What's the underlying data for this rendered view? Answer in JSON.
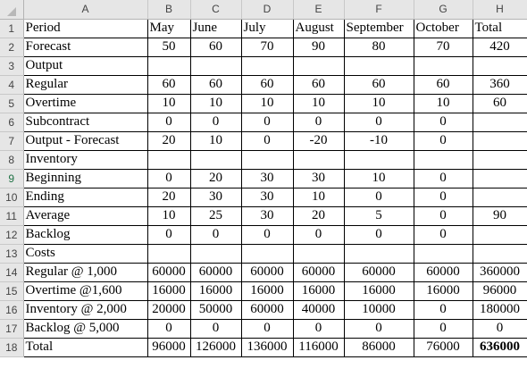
{
  "columns": [
    "A",
    "B",
    "C",
    "D",
    "E",
    "F",
    "G",
    "H"
  ],
  "rows": [
    {
      "num": "1",
      "cells": [
        "Period",
        "May",
        "June",
        "July",
        "August",
        "September",
        "October",
        "Total"
      ]
    },
    {
      "num": "2",
      "cells": [
        "Forecast",
        "50",
        "60",
        "70",
        "90",
        "80",
        "70",
        "420"
      ]
    },
    {
      "num": "3",
      "cells": [
        "Output",
        "",
        "",
        "",
        "",
        "",
        "",
        ""
      ]
    },
    {
      "num": "4",
      "cells": [
        "Regular",
        "60",
        "60",
        "60",
        "60",
        "60",
        "60",
        "360"
      ]
    },
    {
      "num": "5",
      "cells": [
        "Overtime",
        "10",
        "10",
        "10",
        "10",
        "10",
        "10",
        "60"
      ]
    },
    {
      "num": "6",
      "cells": [
        "Subcontract",
        "0",
        "0",
        "0",
        "0",
        "0",
        "0",
        ""
      ]
    },
    {
      "num": "7",
      "cells": [
        "Output - Forecast",
        "20",
        "10",
        "0",
        "-20",
        "-10",
        "0",
        ""
      ]
    },
    {
      "num": "8",
      "cells": [
        "Inventory",
        "",
        "",
        "",
        "",
        "",
        "",
        ""
      ]
    },
    {
      "num": "9",
      "cells": [
        "Beginning",
        "0",
        "20",
        "30",
        "30",
        "10",
        "0",
        ""
      ]
    },
    {
      "num": "10",
      "cells": [
        "Ending",
        "20",
        "30",
        "30",
        "10",
        "0",
        "0",
        ""
      ]
    },
    {
      "num": "11",
      "cells": [
        "Average",
        "10",
        "25",
        "30",
        "20",
        "5",
        "0",
        "90"
      ]
    },
    {
      "num": "12",
      "cells": [
        "Backlog",
        "0",
        "0",
        "0",
        "0",
        "0",
        "0",
        ""
      ]
    },
    {
      "num": "13",
      "cells": [
        "Costs",
        "",
        "",
        "",
        "",
        "",
        "",
        ""
      ]
    },
    {
      "num": "14",
      "cells": [
        "Regular @ 1,000",
        "60000",
        "60000",
        "60000",
        "60000",
        "60000",
        "60000",
        "360000"
      ]
    },
    {
      "num": "15",
      "cells": [
        "Overtime @1,600",
        "16000",
        "16000",
        "16000",
        "16000",
        "16000",
        "16000",
        "96000"
      ]
    },
    {
      "num": "16",
      "cells": [
        "Inventory @ 2,000",
        "20000",
        "50000",
        "60000",
        "40000",
        "10000",
        "0",
        "180000"
      ]
    },
    {
      "num": "17",
      "cells": [
        "Backlog @ 5,000",
        "0",
        "0",
        "0",
        "0",
        "0",
        "0",
        "0"
      ]
    },
    {
      "num": "18",
      "cells": [
        "Total",
        "96000",
        "126000",
        "136000",
        "116000",
        "86000",
        "76000",
        "636000"
      ]
    }
  ],
  "label_cells": [
    "1.1",
    "1.2",
    "1.3",
    "1.4",
    "1.5",
    "1.6",
    "1.7"
  ],
  "bold_cells": [
    "18.8"
  ],
  "selected_row": "9",
  "colors": {
    "header_bg": "#e6e6e6",
    "header_text": "#444444",
    "selected_row_text": "#217346",
    "grid_border": "#000000"
  }
}
